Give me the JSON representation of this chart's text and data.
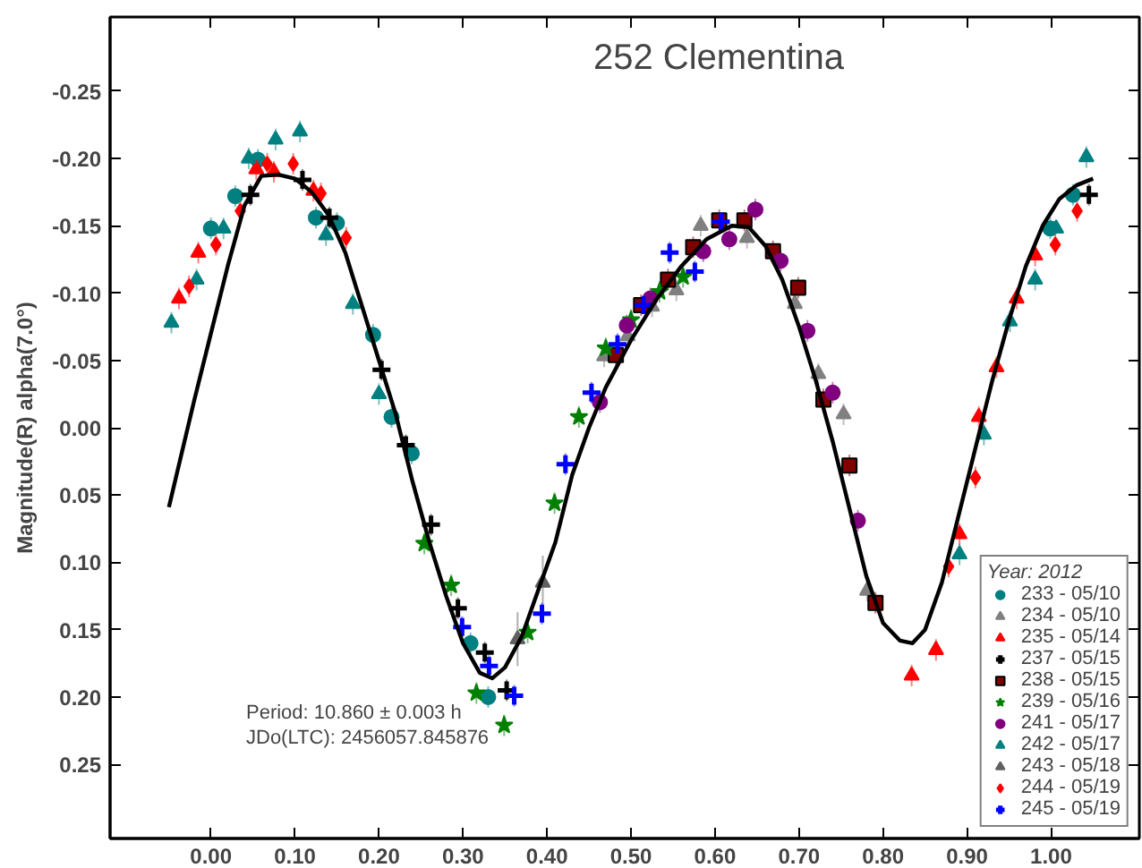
{
  "chart_data": {
    "type": "scatter",
    "title": "252 Clementina",
    "ylabel": "Magnitude(R) alpha(7.0°)",
    "legend_title": "Year: 2012",
    "annotations": [
      "Period: 10.860 ± 0.003 h",
      "JDo(LTC): 2456057.845876"
    ],
    "xlim": [
      -0.12,
      1.105
    ],
    "ylim": [
      0.305,
      -0.305
    ],
    "xticks": [
      {
        "value": 0,
        "label": "0.00"
      },
      {
        "value": 0.1,
        "label": "0.10"
      },
      {
        "value": 0.2,
        "label": "0.20"
      },
      {
        "value": 0.3,
        "label": "0.30"
      },
      {
        "value": 0.4,
        "label": "0.40"
      },
      {
        "value": 0.5,
        "label": "0.50"
      },
      {
        "value": 0.6,
        "label": "0.60"
      },
      {
        "value": 0.7,
        "label": "0.70"
      },
      {
        "value": 0.8,
        "label": "0.80"
      },
      {
        "value": 0.9,
        "label": "0.90"
      },
      {
        "value": 1.0,
        "label": "1.00"
      }
    ],
    "yticks": [
      -0.25,
      {
        "value": -0.2,
        "label": "-0.20"
      },
      -0.15,
      {
        "value": -0.1,
        "label": "-0.10"
      },
      -0.05,
      {
        "value": 0,
        "label": "0.00"
      },
      0.05,
      {
        "value": 0.1,
        "label": "0.10"
      },
      0.15,
      {
        "value": 0.2,
        "label": "0.20"
      },
      0.25
    ],
    "grid": false,
    "legend": "bottom right",
    "series": [
      {
        "name": "233 - 05/10",
        "color": "#008080",
        "marker": "circle",
        "x": [
          0.0,
          0.029,
          0.056,
          0.125,
          0.15,
          0.193,
          0.215,
          0.239,
          0.309,
          0.33,
          0.999,
          1.026
        ],
        "values": [
          -0.148,
          -0.172,
          -0.199,
          -0.156,
          -0.152,
          -0.069,
          -0.008,
          0.019,
          0.16,
          0.2,
          -0.148,
          -0.173
        ],
        "errors": [
          0.008,
          0.008,
          0.008,
          0.008,
          0.008,
          0.008,
          0.008,
          0.008,
          0.008,
          0.008,
          0.008,
          0.008
        ]
      },
      {
        "name": "234 - 05/10",
        "color": "#808080",
        "marker": "triangle",
        "x": [
          0.468,
          0.496,
          0.525,
          0.554,
          0.583,
          0.638,
          0.695,
          0.723,
          0.753,
          0.781
        ],
        "values": [
          -0.053,
          -0.068,
          -0.09,
          -0.102,
          -0.15,
          -0.141,
          -0.092,
          -0.04,
          -0.01,
          0.121
        ],
        "errors": [
          0.008,
          0.008,
          0.008,
          0.008,
          0.008,
          0.008,
          0.008,
          0.008,
          0.008,
          0.008
        ]
      },
      {
        "name": "235 - 05/14",
        "color": "#ff0000",
        "marker": "triangle",
        "x": [
          -0.038,
          -0.015,
          0.054,
          0.075,
          0.122,
          0.834,
          0.863,
          0.891,
          0.914,
          0.935,
          0.959,
          0.981
        ],
        "values": [
          -0.096,
          -0.13,
          -0.192,
          -0.19,
          -0.176,
          0.184,
          0.165,
          0.079,
          -0.008,
          -0.045,
          -0.096,
          -0.128
        ],
        "errors": [
          0.008,
          0.008,
          0.008,
          0.008,
          0.008,
          0.008,
          0.008,
          0.008,
          0.008,
          0.008,
          0.008,
          0.008
        ]
      },
      {
        "name": "237 - 05/15",
        "color": "#000000",
        "marker": "cross",
        "x": [
          0.047,
          0.109,
          0.141,
          0.203,
          0.232,
          0.262,
          0.294,
          0.326,
          0.352,
          1.045
        ],
        "values": [
          -0.173,
          -0.184,
          -0.156,
          -0.043,
          0.013,
          0.072,
          0.134,
          0.167,
          0.195,
          -0.173
        ],
        "errors": [
          0.008,
          0.008,
          0.008,
          0.008,
          0.008,
          0.008,
          0.008,
          0.008,
          0.008,
          0.008
        ]
      },
      {
        "name": "238 - 05/15",
        "color": "#800000",
        "marker": "square",
        "x": [
          0.482,
          0.512,
          0.544,
          0.574,
          0.605,
          0.635,
          0.669,
          0.699,
          0.729,
          0.76,
          0.791
        ],
        "values": [
          -0.054,
          -0.091,
          -0.11,
          -0.134,
          -0.154,
          -0.154,
          -0.131,
          -0.104,
          -0.021,
          0.028,
          0.13
        ],
        "errors": [
          0.008,
          0.008,
          0.008,
          0.008,
          0.008,
          0.008,
          0.008,
          0.008,
          0.008,
          0.008,
          0.008
        ]
      },
      {
        "name": "239 - 05/16",
        "color": "#008000",
        "marker": "star",
        "x": [
          0.254,
          0.286,
          0.316,
          0.349,
          0.377,
          0.409,
          0.438,
          0.47,
          0.5,
          0.534,
          0.562
        ],
        "values": [
          0.086,
          0.117,
          0.197,
          0.221,
          0.152,
          0.056,
          -0.008,
          -0.059,
          -0.08,
          -0.101,
          -0.112
        ],
        "errors": [
          0.008,
          0.008,
          0.008,
          0.008,
          0.008,
          0.008,
          0.008,
          0.008,
          0.008,
          0.008,
          0.008
        ]
      },
      {
        "name": "241 - 05/17",
        "color": "#800080",
        "marker": "circle",
        "x": [
          0.463,
          0.495,
          0.523,
          0.586,
          0.617,
          0.648,
          0.678,
          0.71,
          0.74,
          0.77
        ],
        "values": [
          -0.019,
          -0.076,
          -0.096,
          -0.131,
          -0.14,
          -0.162,
          -0.124,
          -0.072,
          -0.026,
          0.069
        ],
        "errors": [
          0.008,
          0.008,
          0.008,
          0.008,
          0.008,
          0.008,
          0.008,
          0.008,
          0.008,
          0.008
        ]
      },
      {
        "name": "242 - 05/17",
        "color": "#008080",
        "marker": "triangle",
        "x": [
          -0.047,
          -0.017,
          0.015,
          0.045,
          0.077,
          0.106,
          0.137,
          0.169,
          0.2,
          0.891,
          0.92,
          0.951,
          0.981,
          1.006,
          1.042
        ],
        "values": [
          -0.078,
          -0.11,
          -0.148,
          -0.2,
          -0.214,
          -0.22,
          -0.143,
          -0.092,
          -0.025,
          0.094,
          0.005,
          -0.079,
          -0.11,
          -0.148,
          -0.201
        ],
        "errors": [
          0.008,
          0.008,
          0.008,
          0.008,
          0.008,
          0.008,
          0.008,
          0.008,
          0.008,
          0.008,
          0.008,
          0.008,
          0.008,
          null,
          0.008
        ]
      },
      {
        "name": "243 - 05/18",
        "color": "#606060",
        "marker": "triangle",
        "x": [
          0.365,
          0.395
        ],
        "values": [
          0.157,
          0.115
        ],
        "errors": [
          0.02,
          0.02
        ]
      },
      {
        "name": "244 - 05/19",
        "color": "#ff0000",
        "marker": "diamond",
        "x": [
          -0.026,
          0.006,
          0.035,
          0.067,
          0.098,
          0.131,
          0.161,
          0.878,
          0.91,
          1.005,
          1.031
        ],
        "values": [
          -0.105,
          -0.136,
          -0.161,
          -0.196,
          -0.196,
          -0.174,
          -0.141,
          0.103,
          0.037,
          -0.136,
          -0.161
        ],
        "errors": [
          0.008,
          0.008,
          0.008,
          0.008,
          0.008,
          0.008,
          0.008,
          0.008,
          0.008,
          0.008,
          0.008
        ]
      },
      {
        "name": "245 - 05/19",
        "color": "#0000ff",
        "marker": "cross",
        "x": [
          0.299,
          0.331,
          0.361,
          0.394,
          0.422,
          0.453,
          0.484,
          0.515,
          0.546,
          0.576,
          0.607
        ],
        "values": [
          0.148,
          0.177,
          0.199,
          0.138,
          0.027,
          -0.026,
          -0.062,
          -0.091,
          -0.13,
          -0.116,
          -0.153
        ],
        "errors": [
          0.008,
          0.008,
          0.008,
          0.008,
          0.008,
          0.008,
          0.008,
          null,
          0.008,
          0.008,
          null
        ]
      },
      {
        "type": "line",
        "color": "#000000",
        "marker": "none",
        "x": [
          -0.05,
          -0.02,
          0.0,
          0.02,
          0.04,
          0.06,
          0.08,
          0.1,
          0.12,
          0.14,
          0.16,
          0.18,
          0.2,
          0.22,
          0.24,
          0.26,
          0.28,
          0.3,
          0.32,
          0.335,
          0.35,
          0.37,
          0.39,
          0.41,
          0.43,
          0.45,
          0.47,
          0.5,
          0.53,
          0.56,
          0.59,
          0.62,
          0.64,
          0.66,
          0.68,
          0.7,
          0.72,
          0.74,
          0.76,
          0.78,
          0.8,
          0.82,
          0.835,
          0.85,
          0.87,
          0.89,
          0.91,
          0.93,
          0.95,
          0.97,
          0.99,
          1.01,
          1.03,
          1.05
        ],
        "values": [
          0.059,
          -0.02,
          -0.07,
          -0.12,
          -0.165,
          -0.187,
          -0.188,
          -0.185,
          -0.175,
          -0.158,
          -0.13,
          -0.09,
          -0.05,
          -0.01,
          0.04,
          0.085,
          0.125,
          0.16,
          0.182,
          0.186,
          0.178,
          0.155,
          0.12,
          0.085,
          0.035,
          0.0,
          -0.03,
          -0.065,
          -0.095,
          -0.12,
          -0.14,
          -0.15,
          -0.149,
          -0.135,
          -0.11,
          -0.075,
          -0.035,
          0.01,
          0.06,
          0.11,
          0.145,
          0.158,
          0.16,
          0.15,
          0.115,
          0.065,
          0.015,
          -0.035,
          -0.08,
          -0.12,
          -0.15,
          -0.17,
          -0.18,
          -0.185
        ]
      }
    ]
  }
}
